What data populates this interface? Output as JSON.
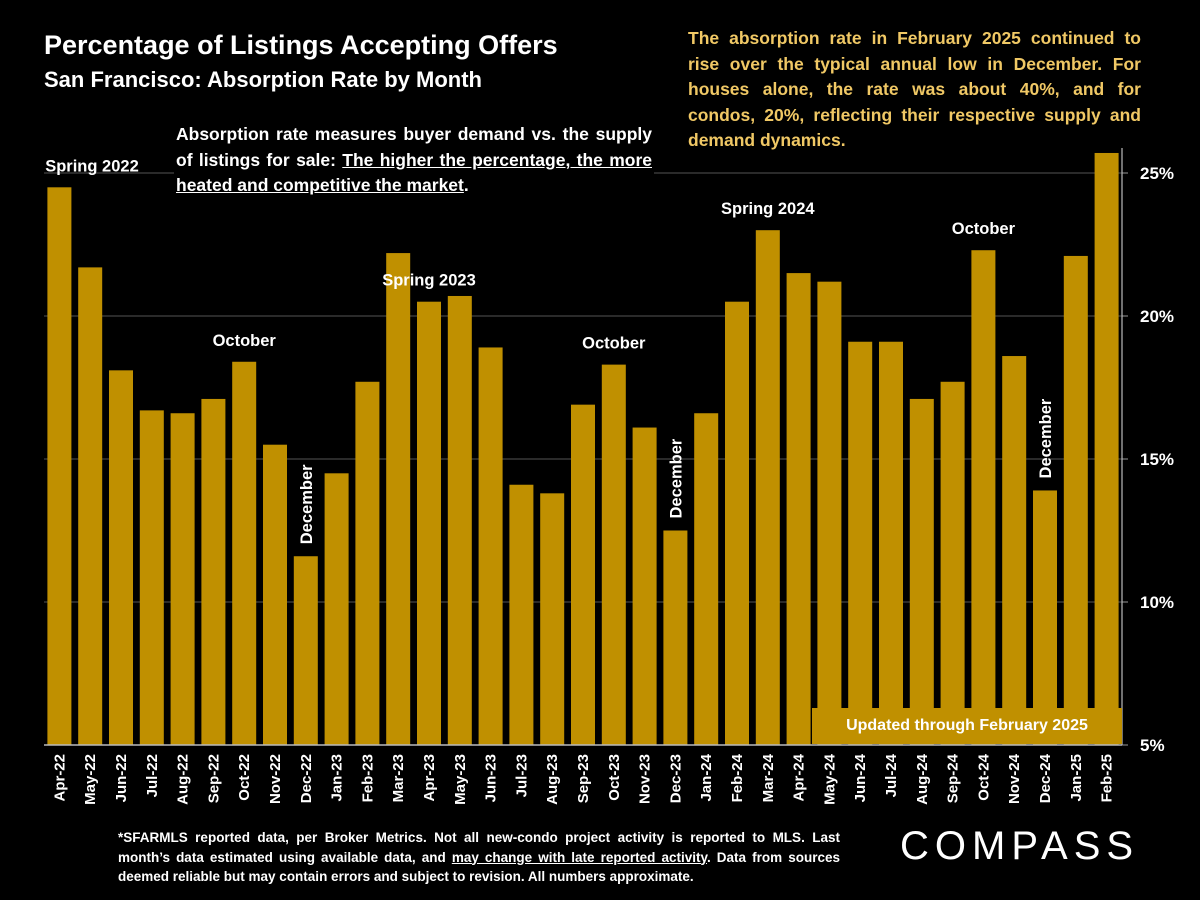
{
  "header": {
    "title": "Percentage of Listings Accepting Offers",
    "subtitle": "San Francisco:  Absorption Rate by Month"
  },
  "notes": {
    "right": "The absorption rate in February 2025 continued to rise over the typical annual low in December. For houses alone, the rate was about 40%, and for condos, 20%, reflecting their respective supply and demand dynamics.",
    "mid_plain": "Absorption rate measures buyer demand vs. the supply of listings for sale: ",
    "mid_underlined": "The higher the percentage, the more heated and competitive the market",
    "mid_end": ".",
    "updated": "Updated through February 2025"
  },
  "footnote": {
    "part1": "*SFARMLS reported data, per Broker Metrics. Not all new-condo project activity is reported to MLS. Last month’s data estimated using available data, and ",
    "underlined": "may change with late reported activity",
    "part2": ". Data from sources deemed reliable but may contain errors and subject to revision. All numbers approximate."
  },
  "logo": "COMPASS",
  "colors": {
    "background": "#000000",
    "bar": "#c09000",
    "note_text": "#f0c865",
    "gridline": "#555555"
  },
  "chart_data": {
    "type": "bar",
    "title": "Percentage of Listings Accepting Offers",
    "subtitle": "San Francisco:  Absorption Rate by Month",
    "xlabel": "",
    "ylabel": "",
    "ylim": [
      5,
      26
    ],
    "y_axis_position": "right",
    "grid": true,
    "yticks": [
      5,
      10,
      15,
      20,
      25
    ],
    "ytick_labels": [
      "5%",
      "10%",
      "15%",
      "20%",
      "25%"
    ],
    "categories": [
      "Apr-22",
      "May-22",
      "Jun-22",
      "Jul-22",
      "Aug-22",
      "Sep-22",
      "Oct-22",
      "Nov-22",
      "Dec-22",
      "Jan-23",
      "Feb-23",
      "Mar-23",
      "Apr-23",
      "May-23",
      "Jun-23",
      "Jul-23",
      "Aug-23",
      "Sep-23",
      "Oct-23",
      "Nov-23",
      "Dec-23",
      "Jan-24",
      "Feb-24",
      "Mar-24",
      "Apr-24",
      "May-24",
      "Jun-24",
      "Jul-24",
      "Aug-24",
      "Sep-24",
      "Oct-24",
      "Nov-24",
      "Dec-24",
      "Jan-25",
      "Feb-25"
    ],
    "values": [
      24.5,
      21.7,
      18.1,
      16.7,
      16.6,
      17.1,
      18.4,
      15.5,
      11.6,
      14.5,
      17.7,
      22.2,
      20.5,
      20.7,
      18.9,
      14.1,
      13.8,
      16.9,
      18.3,
      16.1,
      12.5,
      16.6,
      20.5,
      23.0,
      21.5,
      21.2,
      19.1,
      19.1,
      17.1,
      17.7,
      22.3,
      18.6,
      13.9,
      22.1,
      25.7
    ],
    "annotations": [
      {
        "text": "Spring 2022",
        "index": 0,
        "orientation": "horizontal"
      },
      {
        "text": "October",
        "index": 6,
        "orientation": "horizontal"
      },
      {
        "text": "December",
        "index": 8,
        "orientation": "vertical"
      },
      {
        "text": "Spring 2023",
        "index": 12,
        "orientation": "horizontal"
      },
      {
        "text": "October",
        "index": 18,
        "orientation": "horizontal"
      },
      {
        "text": "December",
        "index": 20,
        "orientation": "vertical"
      },
      {
        "text": "Spring 2024",
        "index": 23,
        "orientation": "horizontal"
      },
      {
        "text": "October",
        "index": 30,
        "orientation": "horizontal"
      },
      {
        "text": "December",
        "index": 32,
        "orientation": "vertical"
      }
    ]
  }
}
